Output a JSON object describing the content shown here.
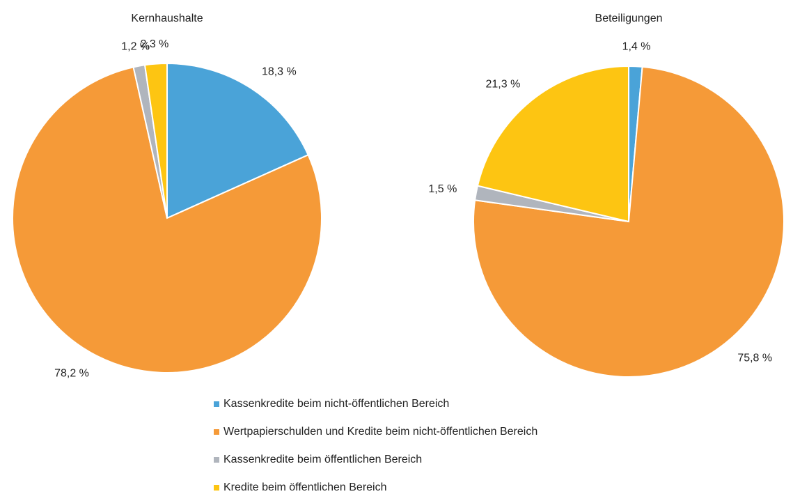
{
  "chart_data": [
    {
      "type": "pie",
      "title": "Kernhaushalte",
      "values": [
        18.3,
        78.2,
        1.2,
        2.3
      ],
      "value_labels": [
        "18,3 %",
        "78,2 %",
        "1,2 %",
        "2,3 %"
      ]
    },
    {
      "type": "pie",
      "title": "Beteiligungen",
      "values": [
        1.4,
        75.8,
        1.5,
        21.3
      ],
      "value_labels": [
        "1,4 %",
        "75,8 %",
        "1,5 %",
        "21,3 %"
      ]
    }
  ],
  "legend": {
    "labels": [
      "Kassenkredite beim nicht-öffentlichen Bereich",
      "Wertpapierschulden und Kredite beim nicht-öffentlichen Bereich",
      "Kassenkredite beim öffentlichen Bereich",
      "Kredite beim öffentlichen Bereich"
    ],
    "colors": [
      "#4aa3d8",
      "#f59a38",
      "#b0b5bd",
      "#fdc512"
    ]
  }
}
